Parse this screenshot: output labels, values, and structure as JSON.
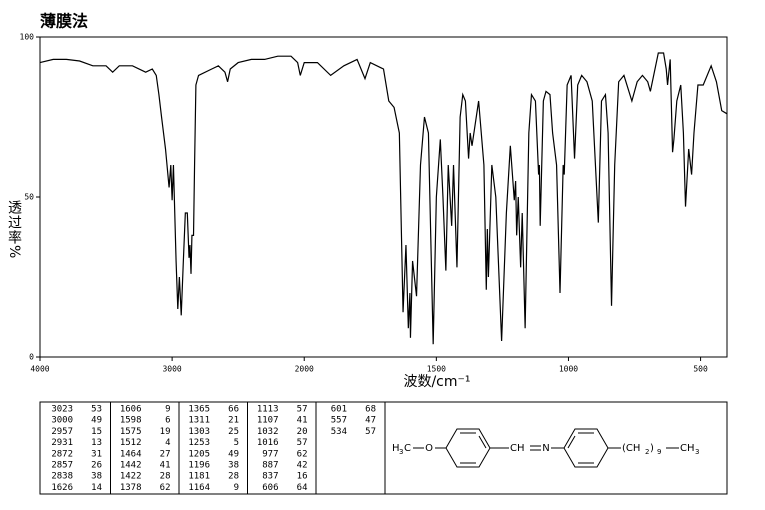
{
  "chart_data": {
    "type": "line",
    "title": "薄膜法",
    "x_label": "波数/cm⁻¹",
    "y_label": "透过率%",
    "color": "#000000",
    "xlim": [
      4000,
      400
    ],
    "xticks": [
      4000,
      3000,
      2000,
      1500,
      1000,
      500
    ],
    "ylim": [
      0,
      100
    ],
    "yticks": [
      0,
      50,
      100
    ],
    "x": [
      4000,
      3900,
      3800,
      3700,
      3600,
      3500,
      3450,
      3400,
      3300,
      3200,
      3150,
      3120,
      3100,
      3080,
      3050,
      3023,
      3010,
      3000,
      2990,
      2970,
      2957,
      2945,
      2931,
      2915,
      2900,
      2885,
      2872,
      2865,
      2857,
      2850,
      2838,
      2830,
      2820,
      2800,
      2700,
      2650,
      2600,
      2580,
      2560,
      2500,
      2400,
      2300,
      2200,
      2100,
      2050,
      2030,
      2000,
      1950,
      1900,
      1850,
      1800,
      1770,
      1750,
      1700,
      1680,
      1660,
      1640,
      1626,
      1615,
      1606,
      1600,
      1598,
      1590,
      1575,
      1560,
      1545,
      1530,
      1512,
      1500,
      1485,
      1475,
      1464,
      1455,
      1442,
      1435,
      1422,
      1410,
      1400,
      1390,
      1378,
      1372,
      1365,
      1340,
      1320,
      1311,
      1307,
      1303,
      1290,
      1275,
      1253,
      1235,
      1220,
      1205,
      1200,
      1196,
      1190,
      1181,
      1175,
      1164,
      1150,
      1140,
      1125,
      1113,
      1110,
      1107,
      1095,
      1085,
      1070,
      1060,
      1045,
      1032,
      1020,
      1016,
      1005,
      990,
      977,
      965,
      950,
      930,
      910,
      887,
      875,
      860,
      850,
      837,
      825,
      810,
      790,
      760,
      740,
      720,
      700,
      690,
      660,
      640,
      630,
      625,
      615,
      606,
      601,
      590,
      575,
      565,
      557,
      545,
      534,
      525,
      510,
      490,
      460,
      440,
      420,
      400
    ],
    "values": [
      92,
      93,
      93,
      92.5,
      91,
      91,
      89,
      91,
      91,
      89,
      90,
      88,
      82,
      75,
      65,
      53,
      60,
      49,
      60,
      30,
      15,
      25,
      13,
      30,
      45,
      45,
      31,
      35,
      26,
      38,
      38,
      60,
      85,
      88,
      90,
      91,
      89,
      86,
      90,
      92,
      93,
      93,
      94,
      94,
      92,
      88,
      92,
      92,
      88,
      91,
      93,
      87,
      92,
      90,
      80,
      78,
      70,
      14,
      35,
      9,
      20,
      6,
      30,
      19,
      60,
      75,
      70,
      4,
      50,
      68,
      50,
      27,
      60,
      41,
      60,
      28,
      75,
      82,
      80,
      62,
      70,
      66,
      80,
      60,
      21,
      40,
      25,
      60,
      50,
      5,
      45,
      66,
      49,
      55,
      38,
      50,
      28,
      45,
      9,
      70,
      82,
      80,
      57,
      60,
      41,
      80,
      83,
      82,
      70,
      60,
      20,
      60,
      57,
      85,
      88,
      62,
      85,
      88,
      86,
      80,
      42,
      80,
      82,
      70,
      16,
      60,
      86,
      88,
      80,
      86,
      88,
      86,
      83,
      95,
      95,
      90,
      85,
      93,
      64,
      68,
      80,
      85,
      70,
      47,
      65,
      57,
      70,
      85,
      85,
      91,
      86,
      77,
      76
    ]
  },
  "peaks": [
    [
      3023,
      53
    ],
    [
      3000,
      49
    ],
    [
      2957,
      15
    ],
    [
      2931,
      13
    ],
    [
      2872,
      31
    ],
    [
      2857,
      26
    ],
    [
      2838,
      38
    ],
    [
      1626,
      14
    ],
    [
      1606,
      9
    ],
    [
      1598,
      6
    ],
    [
      1575,
      19
    ],
    [
      1512,
      4
    ],
    [
      1464,
      27
    ],
    [
      1442,
      41
    ],
    [
      1422,
      28
    ],
    [
      1378,
      62
    ],
    [
      1365,
      66
    ],
    [
      1311,
      21
    ],
    [
      1303,
      25
    ],
    [
      1253,
      5
    ],
    [
      1205,
      49
    ],
    [
      1196,
      38
    ],
    [
      1181,
      28
    ],
    [
      1164,
      9
    ],
    [
      1113,
      57
    ],
    [
      1107,
      41
    ],
    [
      1032,
      20
    ],
    [
      1016,
      57
    ],
    [
      977,
      62
    ],
    [
      887,
      42
    ],
    [
      837,
      16
    ],
    [
      606,
      64
    ],
    [
      601,
      68
    ],
    [
      557,
      47
    ],
    [
      534,
      57
    ]
  ],
  "structure": {
    "h": "H",
    "h_count": "3",
    "c": "C",
    "o": "O",
    "ch": "CH",
    "n": "N",
    "chain_open": "(CH",
    "chain_h_count": "2",
    "chain_close": ")",
    "chain_length": "9",
    "terminal": "CH",
    "terminal_h_count": "3"
  }
}
